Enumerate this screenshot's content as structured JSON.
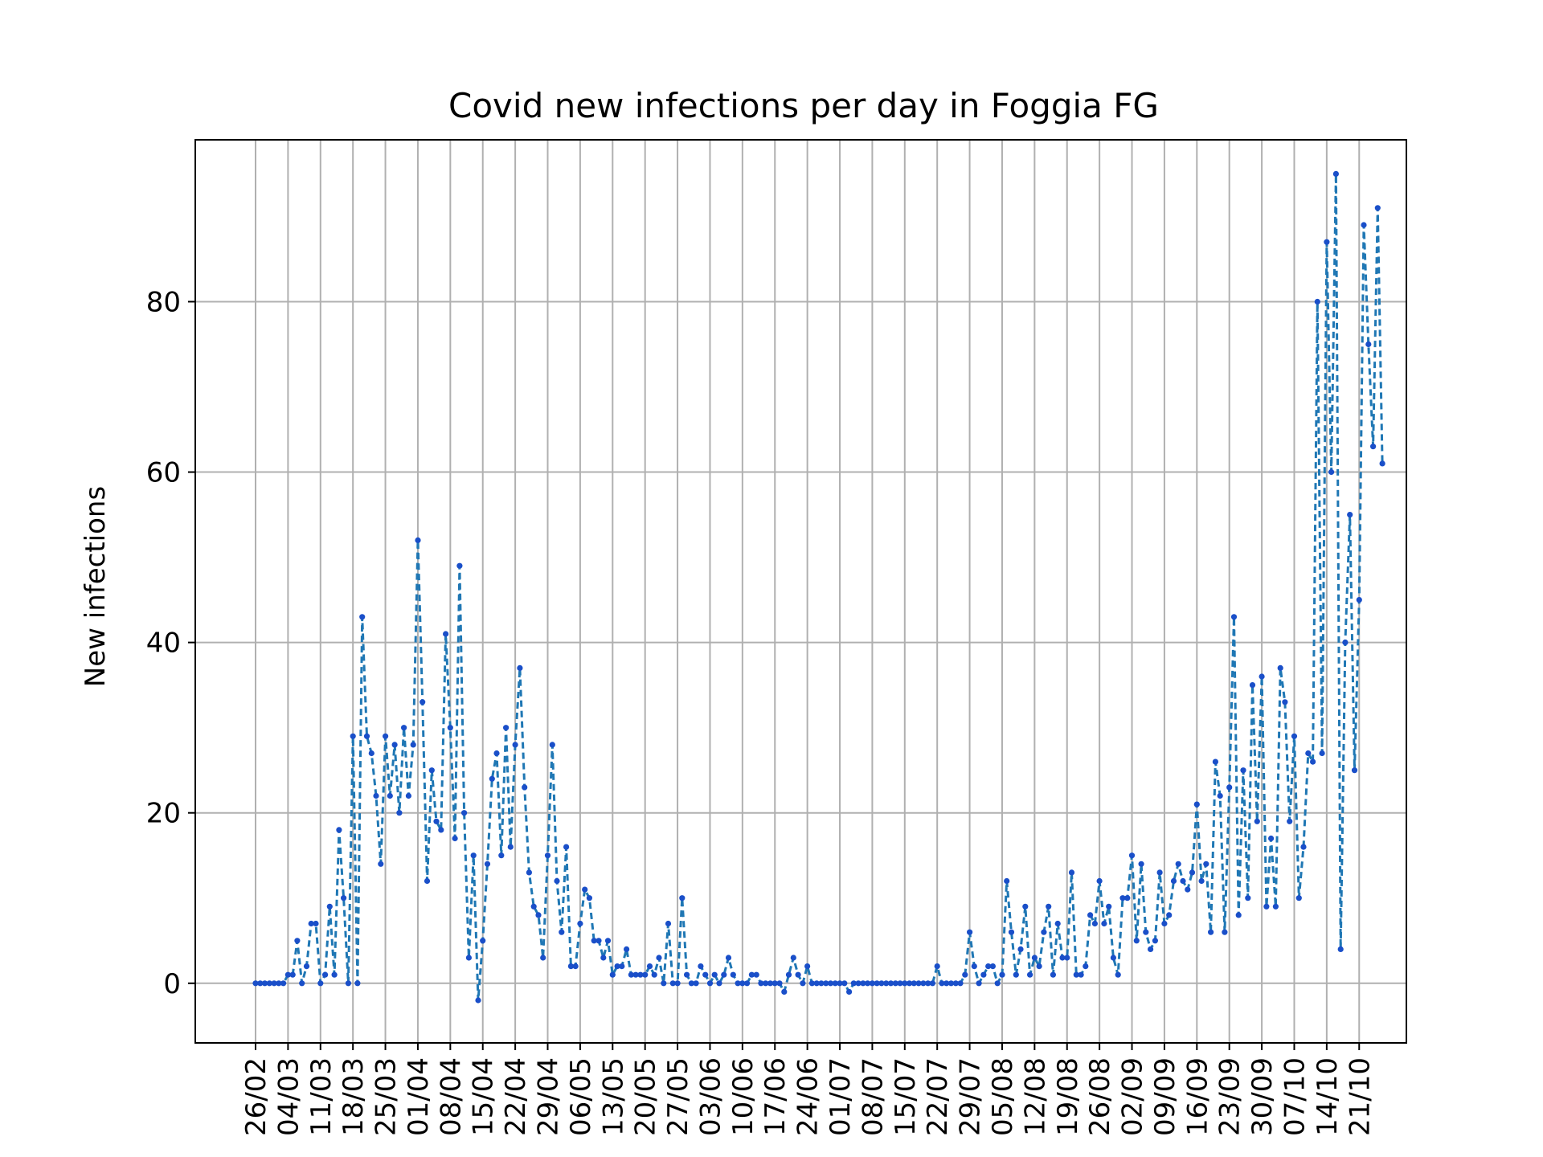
{
  "chart_data": {
    "type": "line",
    "title": "Covid new infections per day in Foggia FG",
    "xlabel": "",
    "ylabel": "New infections",
    "x_start": "26/02",
    "x_ticks": [
      "26/02",
      "04/03",
      "11/03",
      "18/03",
      "25/03",
      "01/04",
      "08/04",
      "15/04",
      "22/04",
      "29/04",
      "06/05",
      "13/05",
      "20/05",
      "27/05",
      "03/06",
      "10/06",
      "17/06",
      "24/06",
      "01/07",
      "08/07",
      "15/07",
      "22/07",
      "29/07",
      "05/08",
      "12/08",
      "19/08",
      "26/08",
      "02/09",
      "09/09",
      "16/09",
      "23/09",
      "30/09",
      "07/10",
      "14/10",
      "21/10"
    ],
    "ylim": [
      -7,
      99
    ],
    "y_ticks": [
      0,
      20,
      40,
      60,
      80
    ],
    "grid": true,
    "color": "#1f77b4",
    "marker_color": "#1a4fc9",
    "line_style": "dashed",
    "series": [
      {
        "values": [
          0,
          0,
          0,
          0,
          0,
          0,
          0,
          1,
          1,
          5,
          0,
          2,
          7,
          7,
          0,
          1,
          9,
          1,
          18,
          10,
          0,
          29,
          0,
          43,
          29,
          27,
          22,
          14,
          29,
          22,
          28,
          20,
          30,
          22,
          28,
          52,
          33,
          12,
          25,
          19,
          18,
          41,
          30,
          17,
          49,
          20,
          3,
          15,
          -2,
          5,
          14,
          24,
          27,
          15,
          30,
          16,
          28,
          37,
          23,
          13,
          9,
          8,
          3,
          15,
          28,
          12,
          6,
          16,
          2,
          2,
          7,
          11,
          10,
          5,
          5,
          3,
          5,
          1,
          2,
          2,
          4,
          1,
          1,
          1,
          1,
          2,
          1,
          3,
          0,
          7,
          0,
          0,
          10,
          1,
          0,
          0,
          2,
          1,
          0,
          1,
          0,
          1,
          3,
          1,
          0,
          0,
          0,
          1,
          1,
          0,
          0,
          0,
          0,
          0,
          -1,
          1,
          3,
          1,
          0,
          2,
          0,
          0,
          0,
          0,
          0,
          0,
          0,
          0,
          -1,
          0,
          0,
          0,
          0,
          0,
          0,
          0,
          0,
          0,
          0,
          0,
          0,
          0,
          0,
          0,
          0,
          0,
          0,
          2,
          0,
          0,
          0,
          0,
          0,
          1,
          6,
          2,
          0,
          1,
          2,
          2,
          0,
          1,
          12,
          6,
          1,
          4,
          9,
          1,
          3,
          2,
          6,
          9,
          1,
          7,
          3,
          3,
          13,
          1,
          1,
          2,
          8,
          7,
          12,
          7,
          9,
          3,
          1,
          10,
          10,
          15,
          5,
          14,
          6,
          4,
          5,
          13,
          7,
          8,
          12,
          14,
          12,
          11,
          13,
          21,
          12,
          14,
          6,
          26,
          22,
          6,
          23,
          43,
          8,
          25,
          10,
          35,
          19,
          36,
          9,
          17,
          9,
          37,
          33,
          19,
          29,
          10,
          16,
          27,
          26,
          80,
          27,
          87,
          60,
          95,
          4,
          40,
          55,
          25,
          45,
          89,
          75,
          63,
          91,
          61
        ]
      }
    ]
  }
}
